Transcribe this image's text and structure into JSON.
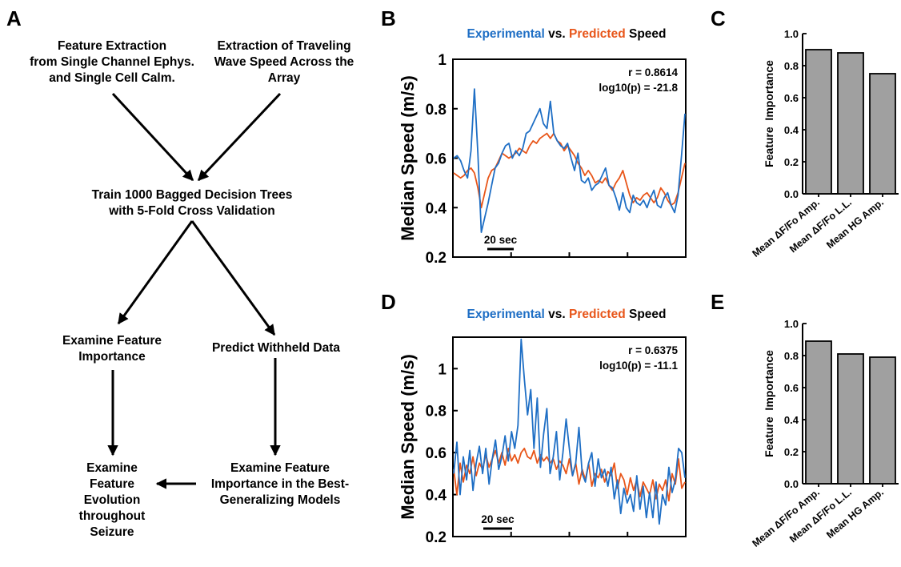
{
  "panels": {
    "A": "A",
    "B": "B",
    "C": "C",
    "D": "D",
    "E": "E"
  },
  "flowchart": {
    "box1": [
      "Feature Extraction",
      "from Single Channel Ephys.",
      "and Single Cell Calm."
    ],
    "box2": [
      "Extraction of Traveling",
      "Wave Speed Across the",
      "Array"
    ],
    "box3": [
      "Train 1000 Bagged Decision Trees",
      "with 5-Fold Cross Validation"
    ],
    "box4": [
      "Examine Feature",
      "Importance"
    ],
    "box5": [
      "Predict Withheld Data"
    ],
    "box6": [
      "Examine",
      "Feature",
      "Evolution",
      "throughout",
      "Seizure"
    ],
    "box7": [
      "Examine Feature",
      "Importance in the Best-",
      "Generalizing Models"
    ]
  },
  "colors": {
    "experimental": "#1f6fc5",
    "predicted": "#e8561a",
    "bar_fill": "#a0a0a0"
  },
  "chart_data": [
    {
      "id": "B",
      "type": "line",
      "title": {
        "part1": "Experimental",
        "part2": " vs. ",
        "part3": "Predicted",
        "part4": " Speed"
      },
      "ylabel": "Median Speed (m/s)",
      "xlabel": "",
      "ylim": [
        0.2,
        1.0
      ],
      "yticks": [
        0.2,
        0.4,
        0.6,
        0.8,
        1
      ],
      "ytick_labels": [
        "0.2",
        "0.4",
        "0.6",
        "0.8",
        "1"
      ],
      "scalebar": "20 sec",
      "annotation": [
        "r = 0.8614",
        "log10(p) = -21.8"
      ],
      "series": [
        {
          "name": "Experimental",
          "color": "#1f6fc5",
          "values": [
            0.6,
            0.61,
            0.59,
            0.55,
            0.52,
            0.63,
            0.88,
            0.62,
            0.3,
            0.36,
            0.42,
            0.49,
            0.56,
            0.58,
            0.62,
            0.65,
            0.66,
            0.6,
            0.63,
            0.61,
            0.64,
            0.7,
            0.71,
            0.74,
            0.77,
            0.8,
            0.74,
            0.72,
            0.83,
            0.7,
            0.67,
            0.65,
            0.64,
            0.66,
            0.6,
            0.55,
            0.62,
            0.51,
            0.5,
            0.52,
            0.47,
            0.49,
            0.5,
            0.53,
            0.56,
            0.49,
            0.48,
            0.44,
            0.39,
            0.46,
            0.4,
            0.38,
            0.45,
            0.42,
            0.41,
            0.43,
            0.4,
            0.44,
            0.47,
            0.41,
            0.4,
            0.44,
            0.46,
            0.41,
            0.38,
            0.45,
            0.61,
            0.78
          ]
        },
        {
          "name": "Predicted",
          "color": "#e8561a",
          "values": [
            0.54,
            0.53,
            0.52,
            0.53,
            0.55,
            0.56,
            0.54,
            0.48,
            0.4,
            0.46,
            0.52,
            0.55,
            0.56,
            0.59,
            0.62,
            0.61,
            0.6,
            0.61,
            0.62,
            0.64,
            0.63,
            0.62,
            0.65,
            0.67,
            0.66,
            0.68,
            0.69,
            0.7,
            0.68,
            0.7,
            0.67,
            0.66,
            0.63,
            0.65,
            0.63,
            0.61,
            0.58,
            0.56,
            0.53,
            0.55,
            0.53,
            0.5,
            0.51,
            0.5,
            0.52,
            0.49,
            0.47,
            0.5,
            0.52,
            0.55,
            0.5,
            0.45,
            0.42,
            0.44,
            0.43,
            0.45,
            0.46,
            0.44,
            0.42,
            0.44,
            0.48,
            0.46,
            0.43,
            0.41,
            0.42,
            0.46,
            0.52,
            0.58
          ]
        }
      ]
    },
    {
      "id": "C",
      "type": "bar",
      "categories": [
        "Mean ΔF/Fo Amp.",
        "Mean ΔF/Fo L.L.",
        "Mean HG Amp."
      ],
      "values": [
        0.9,
        0.88,
        0.75
      ],
      "ylabel": "Feature  Importance",
      "ylim": [
        0.0,
        1.0
      ],
      "yticks": [
        0.0,
        0.2,
        0.4,
        0.6,
        0.8,
        1.0
      ],
      "ytick_labels": [
        "0.0",
        "0.2",
        "0.4",
        "0.6",
        "0.8",
        "1.0"
      ]
    },
    {
      "id": "D",
      "type": "line",
      "title": {
        "part1": "Experimental",
        "part2": " vs. ",
        "part3": "Predicted",
        "part4": " Speed"
      },
      "ylabel": "Median Speed (m/s)",
      "xlabel": "",
      "ylim": [
        0.2,
        1.15
      ],
      "yticks": [
        0.2,
        0.4,
        0.6,
        0.8,
        1
      ],
      "ytick_labels": [
        "0.2",
        "0.4",
        "0.6",
        "0.8",
        "1"
      ],
      "scalebar": "20 sec",
      "annotation": [
        "r = 0.6375",
        "log10(p) = -11.1"
      ],
      "series": [
        {
          "name": "Experimental",
          "color": "#1f6fc5",
          "values": [
            0.5,
            0.65,
            0.4,
            0.58,
            0.47,
            0.61,
            0.42,
            0.55,
            0.63,
            0.5,
            0.62,
            0.45,
            0.57,
            0.66,
            0.52,
            0.58,
            0.68,
            0.56,
            0.7,
            0.62,
            0.73,
            1.14,
            0.95,
            0.78,
            0.9,
            0.62,
            0.86,
            0.53,
            0.69,
            0.81,
            0.5,
            0.58,
            0.7,
            0.47,
            0.6,
            0.76,
            0.62,
            0.49,
            0.55,
            0.72,
            0.5,
            0.46,
            0.55,
            0.6,
            0.44,
            0.57,
            0.48,
            0.52,
            0.44,
            0.53,
            0.38,
            0.47,
            0.31,
            0.43,
            0.36,
            0.4,
            0.32,
            0.49,
            0.33,
            0.44,
            0.29,
            0.41,
            0.29,
            0.46,
            0.26,
            0.4,
            0.35,
            0.53,
            0.41,
            0.47,
            0.62,
            0.6,
            0.48
          ]
        },
        {
          "name": "Predicted",
          "color": "#e8561a",
          "values": [
            0.52,
            0.4,
            0.55,
            0.46,
            0.54,
            0.5,
            0.58,
            0.49,
            0.55,
            0.52,
            0.59,
            0.53,
            0.57,
            0.61,
            0.55,
            0.6,
            0.54,
            0.62,
            0.56,
            0.59,
            0.55,
            0.6,
            0.62,
            0.58,
            0.57,
            0.61,
            0.55,
            0.59,
            0.56,
            0.58,
            0.55,
            0.57,
            0.52,
            0.56,
            0.54,
            0.5,
            0.57,
            0.49,
            0.55,
            0.45,
            0.52,
            0.47,
            0.55,
            0.44,
            0.5,
            0.48,
            0.52,
            0.46,
            0.51,
            0.49,
            0.55,
            0.43,
            0.5,
            0.47,
            0.4,
            0.48,
            0.42,
            0.47,
            0.39,
            0.46,
            0.43,
            0.4,
            0.47,
            0.38,
            0.45,
            0.42,
            0.47,
            0.37,
            0.5,
            0.45,
            0.57,
            0.43,
            0.46
          ]
        }
      ]
    },
    {
      "id": "E",
      "type": "bar",
      "categories": [
        "Mean ΔF/Fo Amp.",
        "Mean ΔF/Fo L.L.",
        "Mean HG Amp."
      ],
      "values": [
        0.89,
        0.81,
        0.79
      ],
      "ylabel": "Feature  Importance",
      "ylim": [
        0.0,
        1.0
      ],
      "yticks": [
        0.0,
        0.2,
        0.4,
        0.6,
        0.8,
        1.0
      ],
      "ytick_labels": [
        "0.0",
        "0.2",
        "0.4",
        "0.6",
        "0.8",
        "1.0"
      ]
    }
  ]
}
